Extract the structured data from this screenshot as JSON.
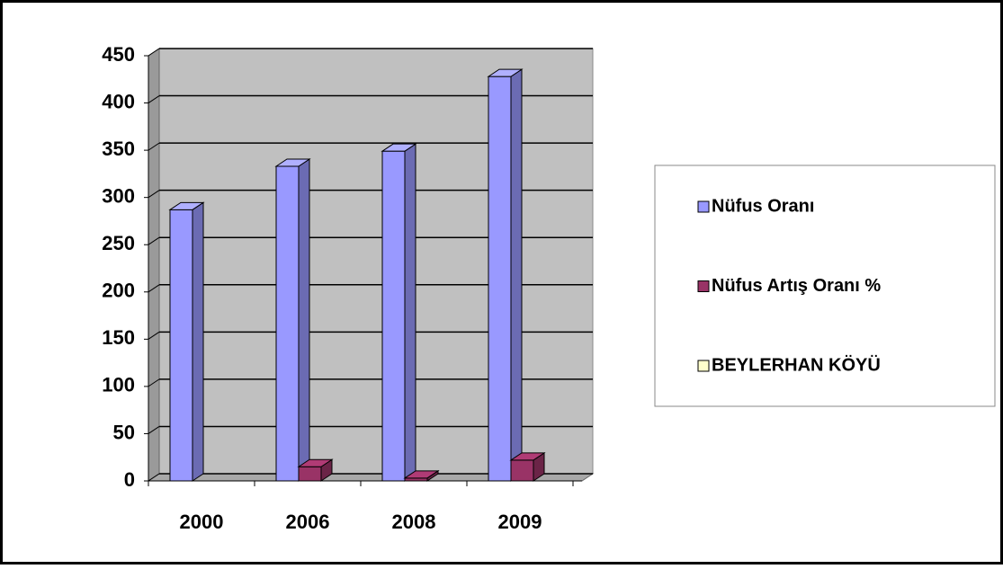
{
  "chart_data": {
    "type": "bar3d",
    "categories": [
      "2000",
      "2006",
      "2008",
      "2009"
    ],
    "series": [
      {
        "name": "Nüfus Oranı",
        "color": "#9999ff",
        "values": [
          287,
          333,
          349,
          428
        ]
      },
      {
        "name": "Nüfus Artış Oranı %",
        "color": "#993366",
        "values": [
          0,
          15,
          3,
          22
        ]
      },
      {
        "name": "BEYLERHAN KÖYÜ",
        "color": "#ffffcc",
        "values": [
          null,
          null,
          null,
          null
        ]
      }
    ],
    "ylim": [
      0,
      450
    ],
    "yticks": [
      0,
      50,
      100,
      150,
      200,
      250,
      300,
      350,
      400,
      450
    ],
    "grid": true,
    "legend": "right"
  }
}
